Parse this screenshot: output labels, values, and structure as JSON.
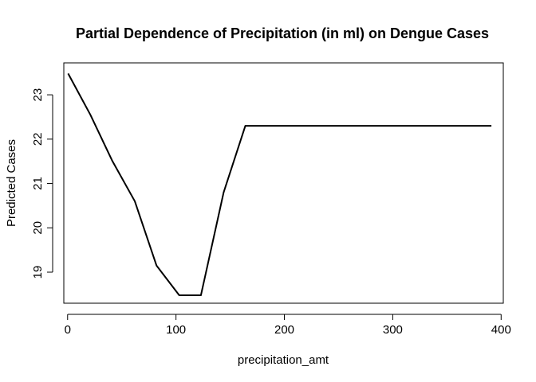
{
  "chart_data": {
    "type": "line",
    "title": "Partial Dependence of Precipitation (in ml) on Dengue Cases",
    "xlabel": "precipitation_amt",
    "ylabel": "Predicted Cases",
    "xlim": [
      -3.5,
      402
    ],
    "ylim": [
      18.3,
      23.72
    ],
    "x_ticks": [
      0,
      100,
      200,
      300,
      400
    ],
    "y_ticks": [
      19,
      20,
      21,
      22,
      23
    ],
    "grid": false,
    "line_color": "#000000",
    "series": [
      {
        "x": [
          0.5,
          21,
          41,
          62,
          82,
          103,
          123,
          144,
          164,
          185,
          391
        ],
        "y": [
          23.48,
          22.55,
          21.52,
          20.6,
          19.15,
          18.48,
          18.48,
          20.8,
          22.3,
          22.3,
          22.3
        ]
      }
    ]
  }
}
